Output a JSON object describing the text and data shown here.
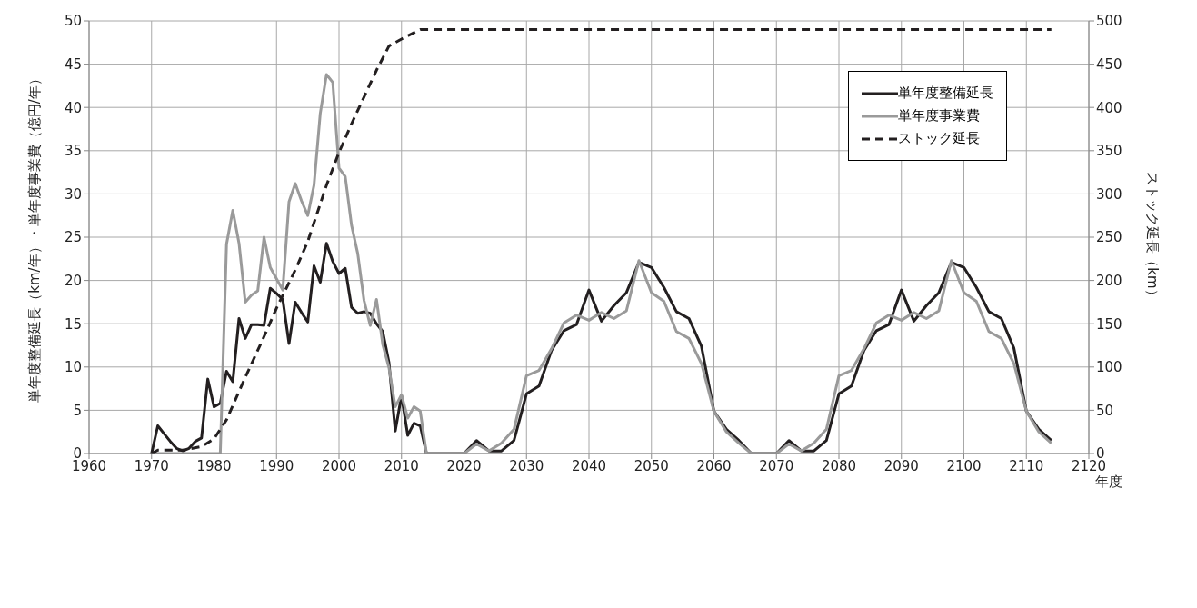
{
  "chart_data": {
    "type": "line",
    "xlabel": "年度",
    "ylabel": "単年度整備延長（km/年）・単年度事業費（億円/年）",
    "y2label": "ストック延長（km）",
    "x": [
      1970,
      1971,
      1972,
      1973,
      1974,
      1975,
      1976,
      1977,
      1978,
      1979,
      1980,
      1981,
      1982,
      1983,
      1984,
      1985,
      1986,
      1987,
      1988,
      1989,
      1990,
      1991,
      1992,
      1993,
      1994,
      1995,
      1996,
      1997,
      1998,
      1999,
      2000,
      2001,
      2002,
      2003,
      2004,
      2005,
      2006,
      2007,
      2008,
      2009,
      2010,
      2011,
      2012,
      2013,
      2014,
      2016,
      2018,
      2020,
      2022,
      2024,
      2026,
      2028,
      2030,
      2032,
      2034,
      2036,
      2038,
      2040,
      2042,
      2044,
      2046,
      2048,
      2050,
      2052,
      2054,
      2056,
      2058,
      2060,
      2062,
      2064,
      2066,
      2068,
      2070,
      2072,
      2074,
      2076,
      2078,
      2080,
      2082,
      2084,
      2086,
      2088,
      2090,
      2092,
      2094,
      2096,
      2098,
      2100,
      2102,
      2104,
      2106,
      2108,
      2110,
      2112,
      2114
    ],
    "series": [
      {
        "name": "単年度整備延長",
        "color": "#231f20",
        "line_style": "solid",
        "values": [
          0,
          3.2,
          2.3,
          1.4,
          0.6,
          0.3,
          0.6,
          1.4,
          1.8,
          8.6,
          5.4,
          5.8,
          9.5,
          8.3,
          15.6,
          13.3,
          14.9,
          14.9,
          14.8,
          19.1,
          18.5,
          17.8,
          12.7,
          17.5,
          16.3,
          15.2,
          21.7,
          19.8,
          24.3,
          22.2,
          20.8,
          21.4,
          16.9,
          16.2,
          16.4,
          16.2,
          15,
          14.1,
          10.5,
          2.6,
          6.7,
          2.1,
          3.5,
          3.2,
          0,
          0,
          0,
          0,
          1.5,
          0.3,
          0.3,
          1.5,
          6.9,
          7.8,
          11.9,
          14.2,
          14.9,
          18.9,
          15.3,
          17.1,
          18.6,
          22.1,
          21.5,
          19.2,
          16.4,
          15.6,
          12.4,
          4.9,
          2.8,
          1.5,
          0,
          0,
          0,
          1.5,
          0.3,
          0.3,
          1.5,
          6.9,
          7.8,
          11.9,
          14.2,
          14.9,
          18.9,
          15.3,
          17.1,
          18.6,
          22.1,
          21.5,
          19.2,
          16.4,
          15.6,
          12.2,
          4.9,
          2.8,
          1.5
        ]
      },
      {
        "name": "単年度事業費",
        "color": "#9a9a9a",
        "line_style": "solid",
        "values": [
          0,
          0,
          0,
          0,
          0,
          0,
          0,
          0,
          0,
          0,
          0,
          0,
          24.2,
          28.1,
          24.3,
          17.5,
          18.3,
          18.8,
          25.0,
          21.5,
          20.2,
          18.9,
          29.1,
          31.2,
          29.2,
          27.5,
          31.0,
          39.3,
          43.8,
          42.9,
          33.0,
          32.0,
          26.4,
          23.1,
          17.7,
          14.8,
          17.8,
          12.6,
          9.9,
          5.4,
          6.8,
          4.1,
          5.4,
          4.9,
          0,
          0,
          0,
          0,
          1.1,
          0.3,
          1.2,
          2.8,
          9.0,
          9.6,
          12.1,
          15.1,
          16.0,
          15.4,
          16.3,
          15.6,
          16.5,
          22.3,
          18.6,
          17.6,
          14.1,
          13.3,
          10.4,
          4.9,
          2.5,
          1.2,
          0,
          0,
          0,
          1.1,
          0.3,
          1.2,
          2.8,
          9.0,
          9.6,
          12.1,
          15.1,
          16.0,
          15.4,
          16.3,
          15.6,
          16.5,
          22.3,
          18.6,
          17.6,
          14.1,
          13.3,
          10.4,
          4.9,
          2.5,
          1.2
        ]
      },
      {
        "name": "ストック延長",
        "color": "#231f20",
        "line_style": "dashed",
        "axis": "y2",
        "x": [
          1970,
          1971,
          1975,
          1978,
          1980,
          1982,
          1985,
          1988,
          1990,
          1993,
          1995,
          1998,
          2000,
          2002,
          2004,
          2006,
          2008,
          2010,
          2013,
          2114
        ],
        "values": [
          0,
          4,
          4,
          8,
          17,
          39,
          88,
          135,
          168,
          212,
          245,
          310,
          348,
          381,
          412,
          443,
          471,
          479,
          490,
          490
        ]
      }
    ],
    "xlim": [
      1960,
      2120
    ],
    "xticks": [
      1960,
      1970,
      1980,
      1990,
      2000,
      2010,
      2020,
      2030,
      2040,
      2050,
      2060,
      2070,
      2080,
      2090,
      2100,
      2110,
      2120
    ],
    "ylim": [
      0,
      50
    ],
    "yticks": [
      0,
      5,
      10,
      15,
      20,
      25,
      30,
      35,
      40,
      45,
      50
    ],
    "y2lim": [
      0,
      500
    ],
    "y2ticks": [
      0,
      50,
      100,
      150,
      200,
      250,
      300,
      350,
      400,
      450,
      500
    ],
    "grid": true,
    "legend": "top right",
    "marker": "none"
  }
}
